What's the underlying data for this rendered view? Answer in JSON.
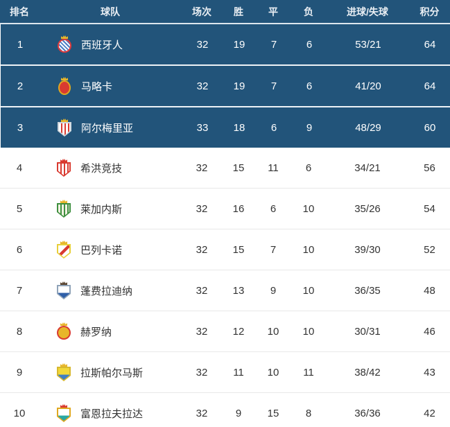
{
  "colors": {
    "header_bg": "#22547a",
    "highlight_row_bg": "#22547a",
    "row_bg": "#ffffff",
    "header_divider": "#dde6ee",
    "dark_row_divider": "#eef3f7",
    "light_row_divider": "#e8e8e8",
    "text_on_dark": "#ffffff",
    "text_on_light": "#333333"
  },
  "table": {
    "columns": [
      {
        "key": "rank",
        "label": "排名"
      },
      {
        "key": "team",
        "label": "球队"
      },
      {
        "key": "played",
        "label": "场次"
      },
      {
        "key": "win",
        "label": "胜"
      },
      {
        "key": "draw",
        "label": "平"
      },
      {
        "key": "loss",
        "label": "负"
      },
      {
        "key": "goals",
        "label": "进球/失球"
      },
      {
        "key": "points",
        "label": "积分"
      }
    ],
    "rows": [
      {
        "rank": "1",
        "team": "西班牙人",
        "played": "32",
        "win": "19",
        "draw": "7",
        "loss": "6",
        "goals": "53/21",
        "points": "64",
        "highlighted": true,
        "icon": "espanyol-crest-icon",
        "badge": {
          "shape": "circle",
          "pattern": "diag-stripes",
          "ring": "#e23b3b",
          "fill": "#ffffff",
          "accent": "#4a7fc4",
          "crown": "#e8b62a"
        }
      },
      {
        "rank": "2",
        "team": "马略卡",
        "played": "32",
        "win": "19",
        "draw": "7",
        "loss": "6",
        "goals": "41/20",
        "points": "64",
        "highlighted": true,
        "icon": "mallorca-crest-icon",
        "badge": {
          "shape": "oval",
          "pattern": "solid",
          "ring": "#e0a81f",
          "fill": "#d93a30",
          "accent": "#e8b62a",
          "crown": "#e8b62a"
        }
      },
      {
        "rank": "3",
        "team": "阿尔梅里亚",
        "played": "33",
        "win": "18",
        "draw": "6",
        "loss": "9",
        "goals": "48/29",
        "points": "60",
        "highlighted": true,
        "icon": "almeria-crest-icon",
        "badge": {
          "shape": "shield",
          "pattern": "vert-stripes",
          "ring": "#cfd5db",
          "fill": "#ffffff",
          "accent": "#d93a30",
          "crown": "#e8b62a"
        }
      },
      {
        "rank": "4",
        "team": "希洪竞技",
        "played": "32",
        "win": "15",
        "draw": "11",
        "loss": "6",
        "goals": "34/21",
        "points": "56",
        "highlighted": false,
        "icon": "sporting-gijon-crest-icon",
        "badge": {
          "shape": "shield",
          "pattern": "vert-stripes",
          "ring": "#d93a30",
          "fill": "#ffffff",
          "accent": "#d93a30",
          "crown": "#d93a30"
        }
      },
      {
        "rank": "5",
        "team": "莱加内斯",
        "played": "32",
        "win": "16",
        "draw": "6",
        "loss": "10",
        "goals": "35/26",
        "points": "54",
        "highlighted": false,
        "icon": "leganes-crest-icon",
        "badge": {
          "shape": "shield",
          "pattern": "vert-stripes",
          "ring": "#3f9040",
          "fill": "#f5f2e3",
          "accent": "#3f9040",
          "crown": "#e8b62a"
        }
      },
      {
        "rank": "6",
        "team": "巴列卡诺",
        "played": "32",
        "win": "15",
        "draw": "7",
        "loss": "10",
        "goals": "39/30",
        "points": "52",
        "highlighted": false,
        "icon": "rayo-vallecano-crest-icon",
        "badge": {
          "shape": "shield",
          "pattern": "diag-band",
          "ring": "#e8cf3a",
          "fill": "#ffffff",
          "accent": "#d93a30",
          "crown": "#e8b62a"
        }
      },
      {
        "rank": "7",
        "team": "蓬费拉迪纳",
        "played": "32",
        "win": "13",
        "draw": "9",
        "loss": "10",
        "goals": "36/35",
        "points": "48",
        "highlighted": false,
        "icon": "ponferradina-crest-icon",
        "badge": {
          "shape": "shield",
          "pattern": "half-h",
          "ring": "#8fa3b8",
          "fill": "#ffffff",
          "accent": "#2f5fa8",
          "crown": "#5b4632"
        }
      },
      {
        "rank": "8",
        "team": "赫罗纳",
        "played": "32",
        "win": "12",
        "draw": "10",
        "loss": "10",
        "goals": "30/31",
        "points": "46",
        "highlighted": false,
        "icon": "girona-crest-icon",
        "badge": {
          "shape": "circle",
          "pattern": "solid",
          "ring": "#d93a30",
          "fill": "#e8b62a",
          "accent": "#d93a30",
          "crown": "#e8b62a"
        }
      },
      {
        "rank": "9",
        "team": "拉斯帕尔马斯",
        "played": "32",
        "win": "11",
        "draw": "10",
        "loss": "11",
        "goals": "38/42",
        "points": "43",
        "highlighted": false,
        "icon": "las-palmas-crest-icon",
        "badge": {
          "shape": "shield",
          "pattern": "half-h",
          "ring": "#d7b82f",
          "fill": "#f2d838",
          "accent": "#3f7ec4",
          "crown": "#e8b62a"
        }
      },
      {
        "rank": "10",
        "team": "富恩拉夫拉达",
        "played": "32",
        "win": "9",
        "draw": "15",
        "loss": "8",
        "goals": "36/36",
        "points": "42",
        "highlighted": false,
        "icon": "fuenlabrada-crest-icon",
        "badge": {
          "shape": "shield",
          "pattern": "half-h",
          "ring": "#e0a81f",
          "fill": "#ffffff",
          "accent": "#2aa7a2",
          "crown": "#d93a30"
        }
      }
    ]
  }
}
